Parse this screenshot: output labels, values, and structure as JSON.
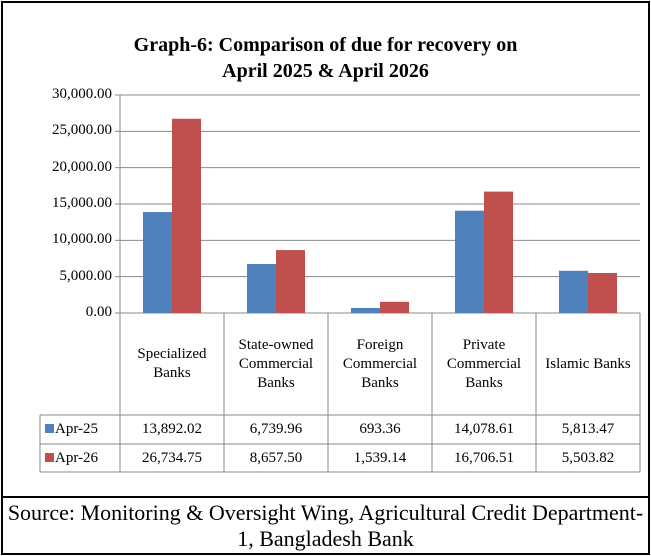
{
  "chart_data": {
    "type": "bar",
    "title": [
      "Graph-6: Comparison of due for recovery on",
      "April 2025 & April 2026"
    ],
    "categories": [
      "Specialized Banks",
      "State-owned Commercial Banks",
      "Foreign Commercial Banks",
      "Private Commercial Banks",
      "Islamic Banks"
    ],
    "series": [
      {
        "name": "Apr-25",
        "color": "#4f81bd",
        "values": [
          13892.02,
          6739.96,
          693.36,
          14078.61,
          5813.47
        ],
        "value_labels": [
          "13,892.02",
          "6,739.96",
          "693.36",
          "14,078.61",
          "5,813.47"
        ]
      },
      {
        "name": "Apr-26",
        "color": "#c0504d",
        "values": [
          26734.75,
          8657.5,
          1539.14,
          16706.51,
          5503.82
        ],
        "value_labels": [
          "26,734.75",
          "8,657.50",
          "1,539.14",
          "16,706.51",
          "5,503.82"
        ]
      }
    ],
    "ylim": [
      0,
      30000
    ],
    "yticks": [
      {
        "value": 0,
        "label": "0.00"
      },
      {
        "value": 5000,
        "label": "5,000.00"
      },
      {
        "value": 10000,
        "label": "10,000.00"
      },
      {
        "value": 15000,
        "label": "15,000.00"
      },
      {
        "value": 20000,
        "label": "20,000.00"
      },
      {
        "value": 25000,
        "label": "25,000.00"
      },
      {
        "value": 30000,
        "label": "30,000.00"
      }
    ],
    "grid": true,
    "source": "Source: Monitoring & Oversight Wing, Agricultural Credit Department-1, Bangladesh Bank"
  }
}
